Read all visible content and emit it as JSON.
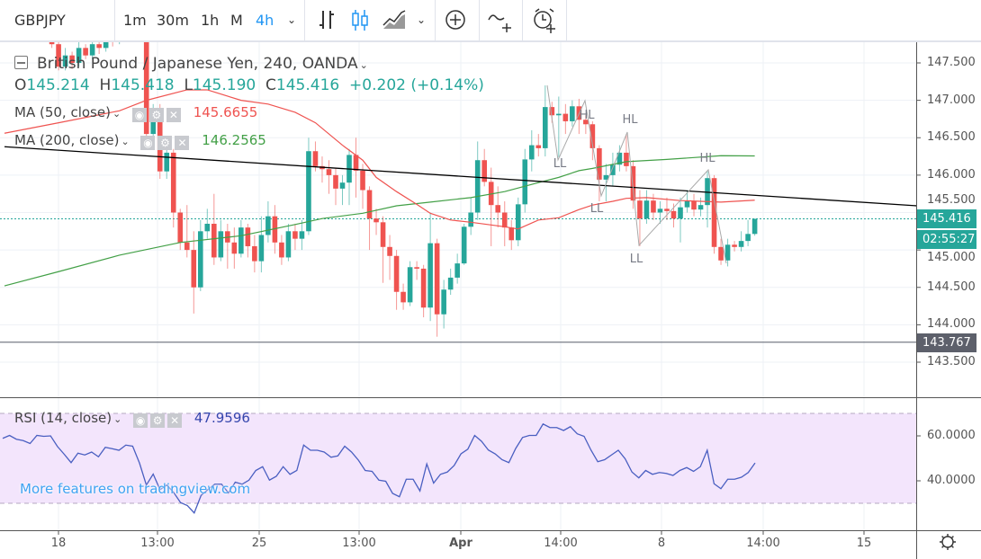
{
  "toolbar": {
    "symbol": "GBPJPY",
    "intervals": [
      "1m",
      "30m",
      "1h",
      "M",
      "4h"
    ],
    "selected_interval": "4h",
    "icons": [
      "chevron-down-icon",
      "bars-icon",
      "candles-icon",
      "area-icon",
      "chevron-down-icon",
      "add-circle-icon",
      "indicators-icon",
      "alert-clock-icon"
    ]
  },
  "legend": {
    "title": "British Pound / Japanese Yen, 240, OANDA",
    "o_label": "O",
    "o": "145.214",
    "h_label": "H",
    "h": "145.418",
    "l_label": "L",
    "l": "145.190",
    "c_label": "C",
    "c": "145.416",
    "change": "+0.202 (+0.14%)",
    "ma50": {
      "label": "MA (50, close)",
      "value": "145.6655",
      "color": "#ef5350"
    },
    "ma200": {
      "label": "MA (200, close)",
      "value": "146.2565",
      "color": "#43a047"
    },
    "rsi": {
      "label": "RSI (14, close)",
      "value": "47.9596",
      "color": "#3f51b5"
    }
  },
  "watermark": "More features on tradingview.com",
  "price_axis": {
    "ticks": [
      "147.500",
      "147.000",
      "146.500",
      "146.000",
      "145.500",
      "145.000",
      "144.500",
      "144.000",
      "143.500"
    ],
    "last_price": "145.416",
    "countdown": "02:55:27",
    "hline_price": "143.767"
  },
  "rsi_axis": {
    "ticks": [
      "60.0000",
      "40.0000"
    ]
  },
  "time_axis": {
    "labels": [
      "18",
      "13:00",
      "25",
      "13:00",
      "Apr",
      "14:00",
      "8",
      "14:00",
      "15"
    ],
    "bold": "Apr"
  },
  "annotations": [
    "HL",
    "LL",
    "LL",
    "HL",
    "LL",
    "HL"
  ],
  "colors": {
    "up": "#26a69a",
    "down": "#ef5350",
    "ma50": "#ef5350",
    "ma200": "#43a047",
    "rsi": "#4a5fc1",
    "rsi_band": "#f3e5fc",
    "trendline": "#000000",
    "hline": "#787b86"
  },
  "chart_data": {
    "type": "candlestick",
    "symbol": "GBPJPY",
    "ylim": [
      143.2,
      147.85
    ],
    "candles_ohlc": [
      [
        148.0,
        148.2,
        147.95,
        148.1
      ],
      [
        148.1,
        148.2,
        147.95,
        148.05
      ],
      [
        148.05,
        148.25,
        148.0,
        148.15
      ],
      [
        148.15,
        148.2,
        147.9,
        148.0
      ],
      [
        148.0,
        148.15,
        147.92,
        148.1
      ],
      [
        148.1,
        148.3,
        148.05,
        148.2
      ],
      [
        148.2,
        148.25,
        148.0,
        148.1
      ],
      [
        148.1,
        148.15,
        147.7,
        147.75
      ],
      [
        147.75,
        147.8,
        147.4,
        147.45
      ],
      [
        147.45,
        147.7,
        147.4,
        147.6
      ],
      [
        147.6,
        147.65,
        147.42,
        147.5
      ],
      [
        147.5,
        147.78,
        147.45,
        147.7
      ],
      [
        147.7,
        147.75,
        147.55,
        147.6
      ],
      [
        147.6,
        147.82,
        147.55,
        147.75
      ],
      [
        147.75,
        147.8,
        147.62,
        147.7
      ],
      [
        147.7,
        147.92,
        147.65,
        147.85
      ],
      [
        147.85,
        147.9,
        147.72,
        147.8
      ],
      [
        147.8,
        148.0,
        147.75,
        147.95
      ],
      [
        147.95,
        148.0,
        147.82,
        147.9
      ],
      [
        147.9,
        148.08,
        147.85,
        148.0
      ],
      [
        148.0,
        148.05,
        147.85,
        147.9
      ],
      [
        147.9,
        147.95,
        146.5,
        146.55
      ],
      [
        146.55,
        146.95,
        146.45,
        146.85
      ],
      [
        146.85,
        146.95,
        145.95,
        146.05
      ],
      [
        146.05,
        146.4,
        145.95,
        146.3
      ],
      [
        146.3,
        146.35,
        145.3,
        145.5
      ],
      [
        145.5,
        145.55,
        145.0,
        145.1
      ],
      [
        145.1,
        145.6,
        144.9,
        145.0
      ],
      [
        145.0,
        145.25,
        144.15,
        144.5
      ],
      [
        144.5,
        145.4,
        144.45,
        145.25
      ],
      [
        145.25,
        145.55,
        145.15,
        145.35
      ],
      [
        145.35,
        145.75,
        144.8,
        144.9
      ],
      [
        144.9,
        145.4,
        144.85,
        145.25
      ],
      [
        145.25,
        145.35,
        144.75,
        145.1
      ],
      [
        145.1,
        145.3,
        144.75,
        144.95
      ],
      [
        144.95,
        145.4,
        144.9,
        145.3
      ],
      [
        145.3,
        145.35,
        144.9,
        145.05
      ],
      [
        145.05,
        145.2,
        144.7,
        144.85
      ],
      [
        144.85,
        145.45,
        144.7,
        145.2
      ],
      [
        145.2,
        145.65,
        145.1,
        145.45
      ],
      [
        145.45,
        145.6,
        144.95,
        145.1
      ],
      [
        145.1,
        145.2,
        144.8,
        144.9
      ],
      [
        144.9,
        145.35,
        144.85,
        145.25
      ],
      [
        145.25,
        145.35,
        145.0,
        145.15
      ],
      [
        145.15,
        145.4,
        145.0,
        145.25
      ],
      [
        145.25,
        146.5,
        145.2,
        146.32
      ],
      [
        146.32,
        146.45,
        146.05,
        146.12
      ],
      [
        146.12,
        146.25,
        145.9,
        146.08
      ],
      [
        146.08,
        146.2,
        145.75,
        146.0
      ],
      [
        146.0,
        146.1,
        145.6,
        145.82
      ],
      [
        145.82,
        146.0,
        145.6,
        145.9
      ],
      [
        145.9,
        146.35,
        145.6,
        146.27
      ],
      [
        146.27,
        146.5,
        145.7,
        146.06
      ],
      [
        146.06,
        146.15,
        145.55,
        145.8
      ],
      [
        145.8,
        145.85,
        145.0,
        145.42
      ],
      [
        145.42,
        145.55,
        145.2,
        145.37
      ],
      [
        145.37,
        145.45,
        144.56,
        145.04
      ],
      [
        145.04,
        145.2,
        144.6,
        144.92
      ],
      [
        144.92,
        145.0,
        144.2,
        144.44
      ],
      [
        144.44,
        144.55,
        144.2,
        144.3
      ],
      [
        144.3,
        144.85,
        144.25,
        144.77
      ],
      [
        144.77,
        144.85,
        144.6,
        144.75
      ],
      [
        144.75,
        144.8,
        144.1,
        144.23
      ],
      [
        144.23,
        145.5,
        144.05,
        145.09
      ],
      [
        145.09,
        145.15,
        143.84,
        144.14
      ],
      [
        144.14,
        144.6,
        143.95,
        144.47
      ],
      [
        144.47,
        144.75,
        144.4,
        144.63
      ],
      [
        144.63,
        144.95,
        144.55,
        144.82
      ],
      [
        144.82,
        145.35,
        144.8,
        145.31
      ],
      [
        145.31,
        145.7,
        145.2,
        145.5
      ],
      [
        145.5,
        146.45,
        145.4,
        146.2
      ],
      [
        146.2,
        146.35,
        145.85,
        145.91
      ],
      [
        145.91,
        146.1,
        145.05,
        145.6
      ],
      [
        145.6,
        145.85,
        145.3,
        145.5
      ],
      [
        145.5,
        145.65,
        145.05,
        145.3
      ],
      [
        145.3,
        145.4,
        145.0,
        145.13
      ],
      [
        145.13,
        145.7,
        145.05,
        145.61
      ],
      [
        145.61,
        146.35,
        145.5,
        146.21
      ],
      [
        146.21,
        146.6,
        146.05,
        146.4
      ],
      [
        146.4,
        146.55,
        146.25,
        146.36
      ],
      [
        146.36,
        147.2,
        146.25,
        146.91
      ],
      [
        146.91,
        146.98,
        146.7,
        146.8
      ],
      [
        146.8,
        147.05,
        146.24,
        146.82
      ],
      [
        146.82,
        146.95,
        146.55,
        146.72
      ],
      [
        146.72,
        147.0,
        146.65,
        146.92
      ],
      [
        146.92,
        147.02,
        146.55,
        146.74
      ],
      [
        146.74,
        146.8,
        146.55,
        146.68
      ],
      [
        146.68,
        146.72,
        146.2,
        146.36
      ],
      [
        146.36,
        146.4,
        145.65,
        145.94
      ],
      [
        145.94,
        146.15,
        145.65,
        146.0
      ],
      [
        146.0,
        146.3,
        145.85,
        146.14
      ],
      [
        146.14,
        146.4,
        146.05,
        146.3
      ],
      [
        146.3,
        146.55,
        146.05,
        146.12
      ],
      [
        146.12,
        146.2,
        145.55,
        145.66
      ],
      [
        145.66,
        145.8,
        145.05,
        145.42
      ],
      [
        145.42,
        145.8,
        145.35,
        145.66
      ],
      [
        145.66,
        145.75,
        145.4,
        145.5
      ],
      [
        145.5,
        145.65,
        145.35,
        145.55
      ],
      [
        145.55,
        145.7,
        145.4,
        145.52
      ],
      [
        145.52,
        145.62,
        145.3,
        145.42
      ],
      [
        145.42,
        145.7,
        145.1,
        145.57
      ],
      [
        145.57,
        145.8,
        145.5,
        145.65
      ],
      [
        145.65,
        145.75,
        145.45,
        145.54
      ],
      [
        145.54,
        145.7,
        145.45,
        145.6
      ],
      [
        145.6,
        146.05,
        145.3,
        145.96
      ],
      [
        145.96,
        146.0,
        144.95,
        145.04
      ],
      [
        145.04,
        145.15,
        144.8,
        144.86
      ],
      [
        144.86,
        145.15,
        144.78,
        145.07
      ],
      [
        145.07,
        145.12,
        144.98,
        145.04
      ],
      [
        145.04,
        145.25,
        144.98,
        145.12
      ],
      [
        145.12,
        145.4,
        145.05,
        145.214
      ],
      [
        145.214,
        145.418,
        145.19,
        145.416
      ]
    ],
    "ma50_points": [
      [
        0,
        146.56
      ],
      [
        8,
        146.7
      ],
      [
        17,
        146.86
      ],
      [
        21,
        147.0
      ],
      [
        27,
        147.14
      ],
      [
        30,
        147.14
      ],
      [
        35,
        147.0
      ],
      [
        39,
        146.95
      ],
      [
        43,
        146.84
      ],
      [
        46,
        146.7
      ],
      [
        50,
        146.4
      ],
      [
        53,
        146.2
      ],
      [
        55,
        145.97
      ],
      [
        58,
        145.78
      ],
      [
        61,
        145.61
      ],
      [
        63,
        145.49
      ],
      [
        66,
        145.4
      ],
      [
        69,
        145.37
      ],
      [
        74,
        145.31
      ],
      [
        76,
        145.28
      ],
      [
        79,
        145.4
      ],
      [
        82,
        145.43
      ],
      [
        85,
        145.54
      ],
      [
        87,
        145.6
      ],
      [
        90,
        145.65
      ],
      [
        92,
        145.69
      ],
      [
        95,
        145.7
      ],
      [
        100,
        145.66
      ],
      [
        106,
        145.64
      ],
      [
        111,
        145.6655
      ]
    ],
    "ma200_points": [
      [
        0,
        144.52
      ],
      [
        8,
        144.71
      ],
      [
        17,
        144.93
      ],
      [
        26,
        145.1
      ],
      [
        35,
        145.19
      ],
      [
        43,
        145.34
      ],
      [
        47,
        145.42
      ],
      [
        53,
        145.49
      ],
      [
        58,
        145.59
      ],
      [
        63,
        145.64
      ],
      [
        69,
        145.7
      ],
      [
        74,
        145.78
      ],
      [
        79,
        145.9
      ],
      [
        82,
        145.97
      ],
      [
        85,
        146.06
      ],
      [
        87,
        146.09
      ],
      [
        92,
        146.18
      ],
      [
        98,
        146.21
      ],
      [
        106,
        146.26
      ],
      [
        111,
        146.2565
      ]
    ],
    "trendline": {
      "from": [
        0,
        146.38
      ],
      "to": [
        135,
        145.59
      ]
    },
    "horizontal_line": 143.767,
    "rsi": {
      "ylim": [
        20,
        72
      ],
      "band": [
        30,
        70
      ],
      "values": [
        58.9,
        60.2,
        58.5,
        57.9,
        56.6,
        60.2,
        59.8,
        60.0,
        55.3,
        51.8,
        48.1,
        52.3,
        51.5,
        52.8,
        50.7,
        54.9,
        54.3,
        53.6,
        55.9,
        55.4,
        47.9,
        38.1,
        43.0,
        36.1,
        38.1,
        34.8,
        30.3,
        29.0,
        25.7,
        33.5,
        36.1,
        38.5,
        38.5,
        34.6,
        39.4,
        38.5,
        40.3,
        44.6,
        46.3,
        40.3,
        42.0,
        46.3,
        42.9,
        44.6,
        55.9,
        53.6,
        53.6,
        52.8,
        50.5,
        51.1,
        55.4,
        52.8,
        49.2,
        44.6,
        44.2,
        40.3,
        39.8,
        34.4,
        32.9,
        40.7,
        40.7,
        35.5,
        47.5,
        39.0,
        42.9,
        43.9,
        46.8,
        52.0,
        54.1,
        60.2,
        57.6,
        53.7,
        52.0,
        49.4,
        48.1,
        54.4,
        59.3,
        60.2,
        60.2,
        65.3,
        63.7,
        63.7,
        62.4,
        64.1,
        60.9,
        59.8,
        53.7,
        48.5,
        49.4,
        51.5,
        53.6,
        49.8,
        43.9,
        41.3,
        44.6,
        42.9,
        43.7,
        43.3,
        42.4,
        44.6,
        45.9,
        44.2,
        46.3,
        53.6,
        38.7,
        36.5,
        40.7,
        40.7,
        41.6,
        43.7,
        47.96
      ]
    }
  }
}
